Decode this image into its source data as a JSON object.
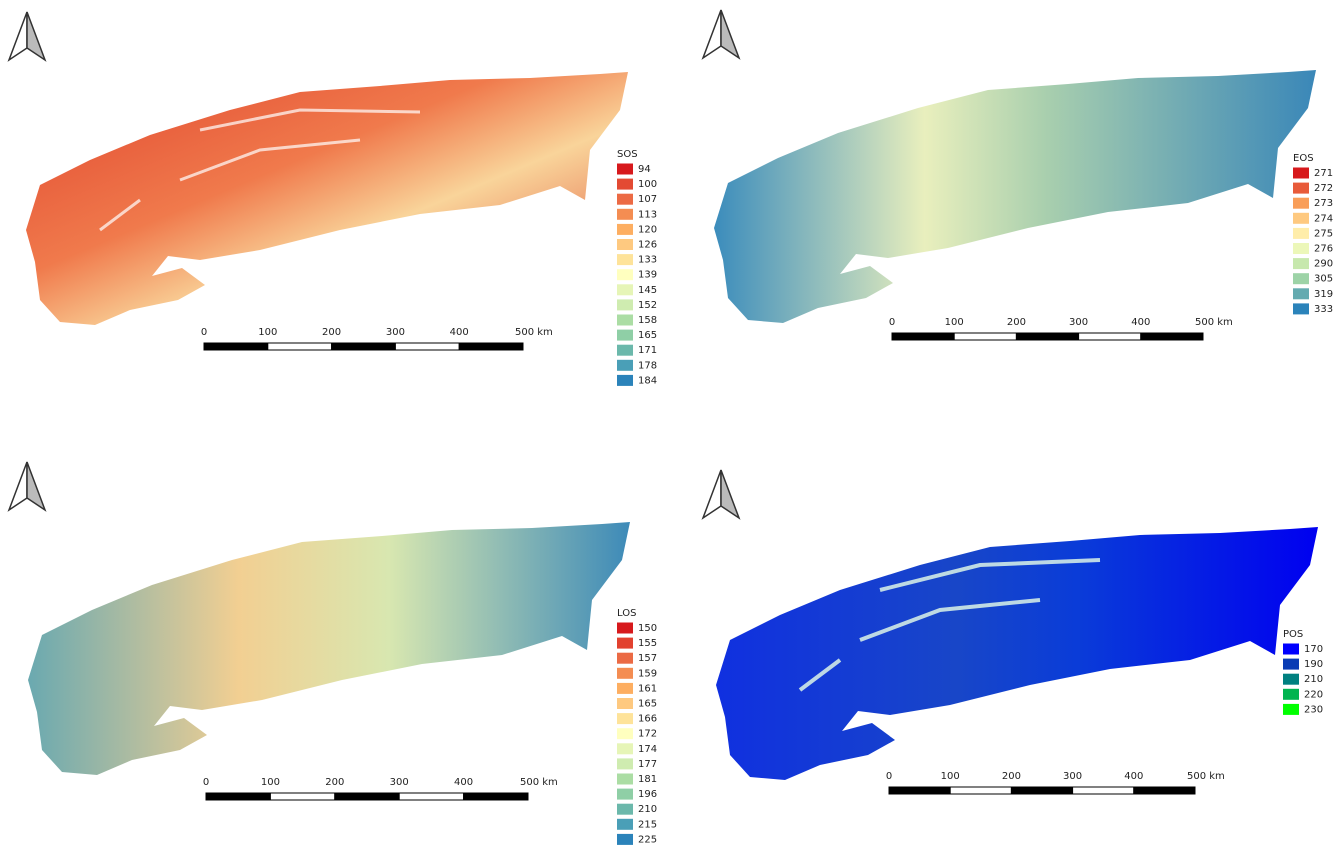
{
  "panels": [
    {
      "legend": {
        "title": "SOS",
        "items": [
          {
            "label": "94",
            "color": "#d7191c"
          },
          {
            "label": "100",
            "color": "#e34a33"
          },
          {
            "label": "107",
            "color": "#ec6a44"
          },
          {
            "label": "113",
            "color": "#f48d52"
          },
          {
            "label": "120",
            "color": "#fdae61"
          },
          {
            "label": "126",
            "color": "#fec980"
          },
          {
            "label": "133",
            "color": "#fee39a"
          },
          {
            "label": "139",
            "color": "#ffffbf"
          },
          {
            "label": "145",
            "color": "#e6f5b7"
          },
          {
            "label": "152",
            "color": "#cfecb0"
          },
          {
            "label": "158",
            "color": "#abdda4"
          },
          {
            "label": "165",
            "color": "#8fcfa6"
          },
          {
            "label": "171",
            "color": "#6bb8ab"
          },
          {
            "label": "178",
            "color": "#4a9fb7"
          },
          {
            "label": "184",
            "color": "#2b83ba"
          }
        ]
      }
    },
    {
      "legend": {
        "title": "EOS",
        "items": [
          {
            "label": "271",
            "color": "#d7191c"
          },
          {
            "label": "272",
            "color": "#e85b3a"
          },
          {
            "label": "273",
            "color": "#f99e59"
          },
          {
            "label": "274",
            "color": "#fec980"
          },
          {
            "label": "275",
            "color": "#ffedaa"
          },
          {
            "label": "276",
            "color": "#ecf7b9"
          },
          {
            "label": "290",
            "color": "#c7e8ad"
          },
          {
            "label": "305",
            "color": "#9dd3a7"
          },
          {
            "label": "319",
            "color": "#64abb0"
          },
          {
            "label": "333",
            "color": "#2b83ba"
          }
        ]
      }
    },
    {
      "legend": {
        "title": "LOS",
        "items": [
          {
            "label": "150",
            "color": "#d7191c"
          },
          {
            "label": "155",
            "color": "#e2412f"
          },
          {
            "label": "157",
            "color": "#eb6a44"
          },
          {
            "label": "159",
            "color": "#f48d52"
          },
          {
            "label": "161",
            "color": "#fdae61"
          },
          {
            "label": "165",
            "color": "#fec980"
          },
          {
            "label": "166",
            "color": "#fee39a"
          },
          {
            "label": "172",
            "color": "#ffffbf"
          },
          {
            "label": "174",
            "color": "#e6f5b7"
          },
          {
            "label": "177",
            "color": "#cfecb0"
          },
          {
            "label": "181",
            "color": "#abdda4"
          },
          {
            "label": "196",
            "color": "#8fcfa6"
          },
          {
            "label": "210",
            "color": "#6bb8ab"
          },
          {
            "label": "215",
            "color": "#4a9fb7"
          },
          {
            "label": "225",
            "color": "#2b83ba"
          }
        ]
      }
    },
    {
      "legend": {
        "title": "POS",
        "items": [
          {
            "label": "170",
            "color": "#0000ff"
          },
          {
            "label": "190",
            "color": "#0a3cb4"
          },
          {
            "label": "210",
            "color": "#008080"
          },
          {
            "label": "220",
            "color": "#00b450"
          },
          {
            "label": "230",
            "color": "#00ff00"
          }
        ]
      }
    }
  ],
  "scale_bar": {
    "labels": [
      "0",
      "100",
      "200",
      "300",
      "400",
      "500 km"
    ]
  }
}
